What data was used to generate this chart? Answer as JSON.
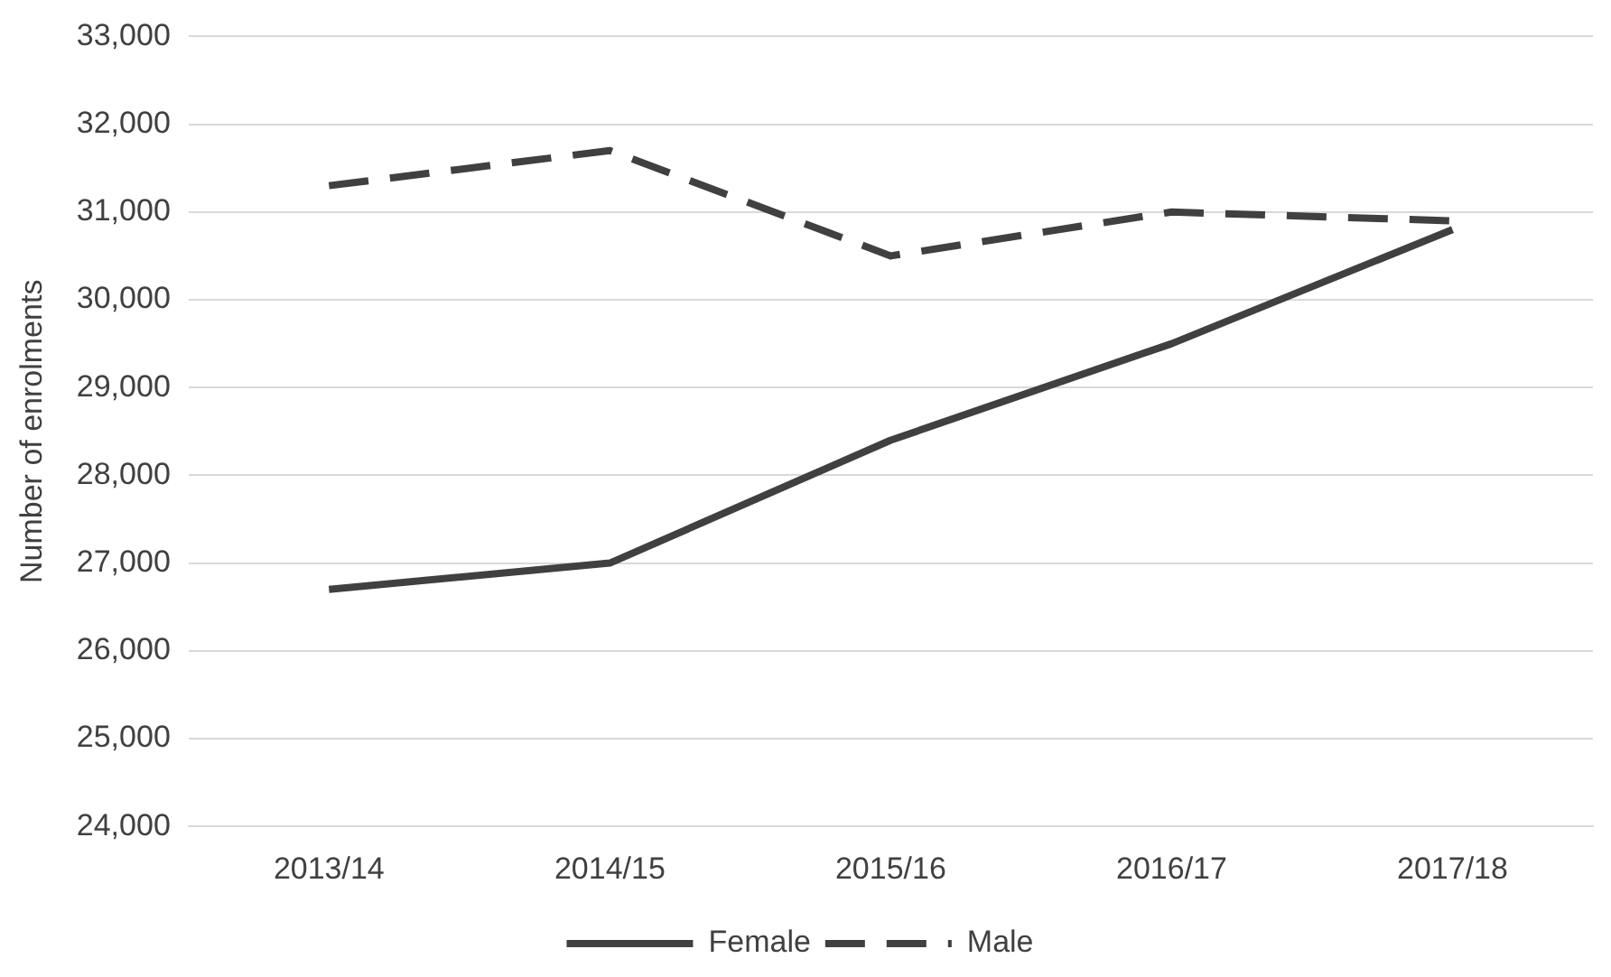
{
  "chart_data": {
    "type": "line",
    "ylabel": "Number of enrolments",
    "categories": [
      "2013/14",
      "2014/15",
      "2015/16",
      "2016/17",
      "2017/18"
    ],
    "series": [
      {
        "name": "Female",
        "color": "#404040",
        "line_style": "solid",
        "values": [
          26700,
          27000,
          28400,
          29500,
          30800
        ]
      },
      {
        "name": "Male",
        "color": "#404040",
        "line_style": "dashed",
        "values": [
          31300,
          31700,
          30500,
          31000,
          30900
        ]
      }
    ],
    "ylim": [
      24000,
      33000
    ],
    "yticks": [
      {
        "value": 24000,
        "label": "24,000"
      },
      {
        "value": 25000,
        "label": "25,000"
      },
      {
        "value": 26000,
        "label": "26,000"
      },
      {
        "value": 27000,
        "label": "27,000"
      },
      {
        "value": 28000,
        "label": "28,000"
      },
      {
        "value": 29000,
        "label": "29,000"
      },
      {
        "value": 30000,
        "label": "30,000"
      },
      {
        "value": 31000,
        "label": "31,000"
      },
      {
        "value": 32000,
        "label": "32,000"
      },
      {
        "value": 33000,
        "label": "33,000"
      }
    ],
    "grid": "y",
    "legend": "bottom",
    "marker": "none"
  }
}
